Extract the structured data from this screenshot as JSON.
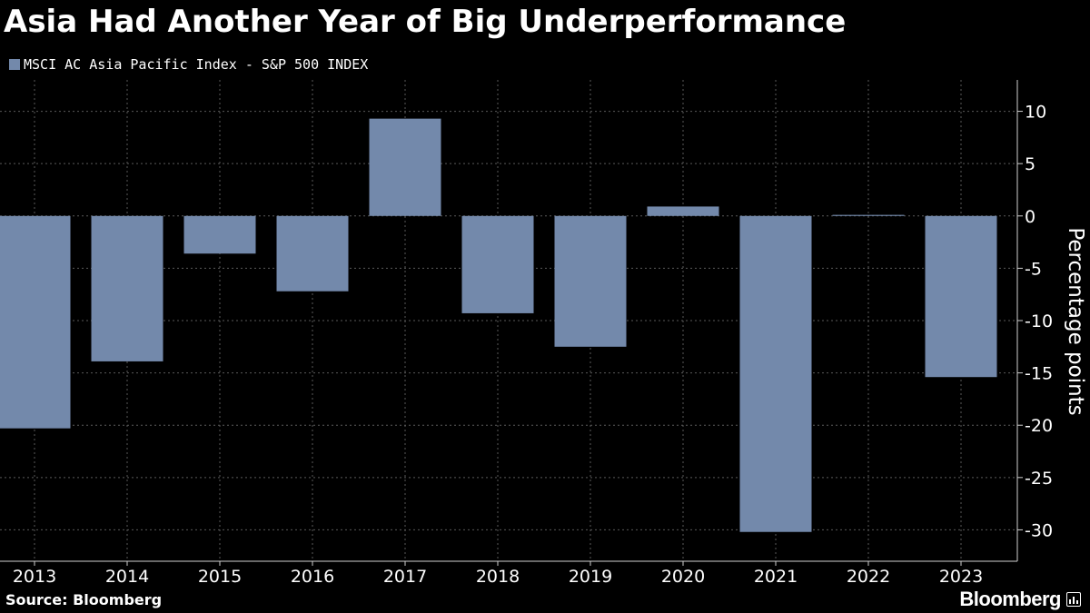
{
  "header": {
    "title": "Asia Had Another Year of Big Underperformance"
  },
  "legend": {
    "label": "MSCI AC Asia Pacific Index - S&P 500 INDEX",
    "color": "#7389ab"
  },
  "footer": {
    "source": "Source: Bloomberg",
    "brand": "Bloomberg",
    "badge_icon": "bar-chart-icon"
  },
  "colors": {
    "background": "#000000",
    "bar": "#7389ab",
    "grid": "#5a5a5a",
    "text": "#ffffff"
  },
  "chart_data": {
    "type": "bar",
    "title": "Asia Had Another Year of Big Underperformance",
    "xlabel": "",
    "ylabel": "Percentage points",
    "ylim": [
      -33,
      13
    ],
    "yticks": [
      10,
      5,
      0,
      -5,
      -10,
      -15,
      -20,
      -25,
      -30
    ],
    "ytick_labels": [
      "10",
      "5",
      "0",
      "-5",
      "-10",
      "-15",
      "-20",
      "-25",
      "-30"
    ],
    "categories": [
      "2013",
      "2014",
      "2015",
      "2016",
      "2017",
      "2018",
      "2019",
      "2020",
      "2021",
      "2022",
      "2023"
    ],
    "series": [
      {
        "name": "MSCI AC Asia Pacific Index - S&P 500 INDEX",
        "values": [
          -20.3,
          -13.9,
          -3.6,
          -7.2,
          9.3,
          -9.3,
          -12.5,
          0.9,
          -30.2,
          0.1,
          -15.4
        ]
      }
    ],
    "grid": true,
    "axis_side": "right",
    "legend_position": "top-left"
  }
}
